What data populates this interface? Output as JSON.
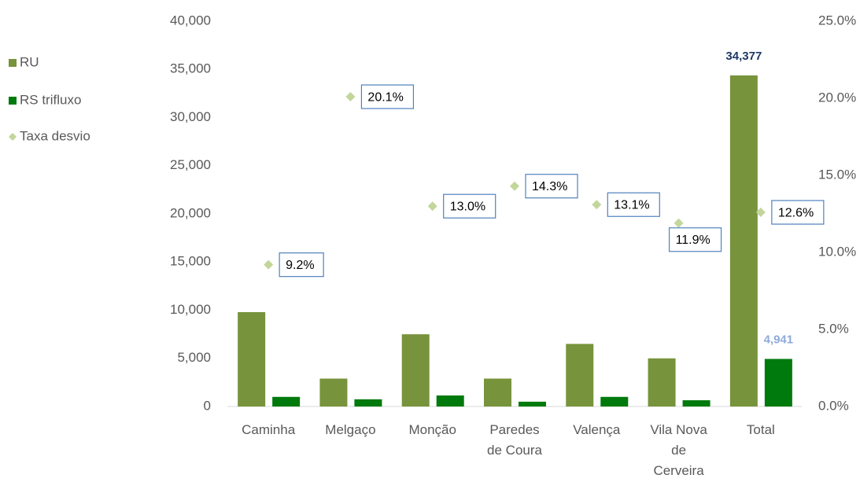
{
  "chart_data": {
    "type": "bar",
    "categories": [
      "Caminha",
      "Melgaço",
      "Monção",
      "Paredes de Coura",
      "Valença",
      "Vila Nova de Cerveira",
      "Total"
    ],
    "series": [
      {
        "name": "RU",
        "color": "#77933c",
        "values": [
          9800,
          2900,
          7500,
          2900,
          6500,
          5000,
          34377
        ],
        "value_labels": [
          null,
          null,
          null,
          null,
          null,
          null,
          "34,377"
        ],
        "label_color": "#1f3864"
      },
      {
        "name": "RS trifluxo",
        "color": "#007a0c",
        "values": [
          1000,
          750,
          1150,
          500,
          1000,
          650,
          4941
        ],
        "value_labels": [
          null,
          null,
          null,
          null,
          null,
          null,
          "4,941"
        ],
        "label_color": "#8eaadb"
      },
      {
        "name": "Taxa desvio",
        "type": "scatter",
        "axis": "y2",
        "color": "#c3d69b",
        "values": [
          9.2,
          20.1,
          13.0,
          14.3,
          13.1,
          11.9,
          12.6
        ],
        "value_labels": [
          "9.2%",
          "20.1%",
          "13.0%",
          "14.3%",
          "13.1%",
          "11.9%",
          "12.6%"
        ]
      }
    ],
    "ylim": [
      0,
      40000
    ],
    "yticks": [
      0,
      {
        "value": 5000,
        "label": "5,000"
      },
      {
        "value": 10000,
        "label": "10,000"
      },
      {
        "value": 15000,
        "label": "15,000"
      },
      {
        "value": 20000,
        "label": "20,000"
      },
      {
        "value": 25000,
        "label": "25,000"
      },
      {
        "value": 30000,
        "label": "30,000"
      },
      {
        "value": 35000,
        "label": "35,000"
      },
      {
        "value": 40000,
        "label": "40,000"
      }
    ],
    "y2lim": [
      0,
      25
    ],
    "y2ticks": [
      {
        "value": 0,
        "label": "0.0%"
      },
      {
        "value": 5,
        "label": "5.0%"
      },
      {
        "value": 10,
        "label": "10.0%"
      },
      {
        "value": 15,
        "label": "15.0%"
      },
      {
        "value": 20,
        "label": "20.0%"
      },
      {
        "value": 25,
        "label": "25.0%"
      }
    ],
    "legend": "top-left",
    "grid": false
  }
}
